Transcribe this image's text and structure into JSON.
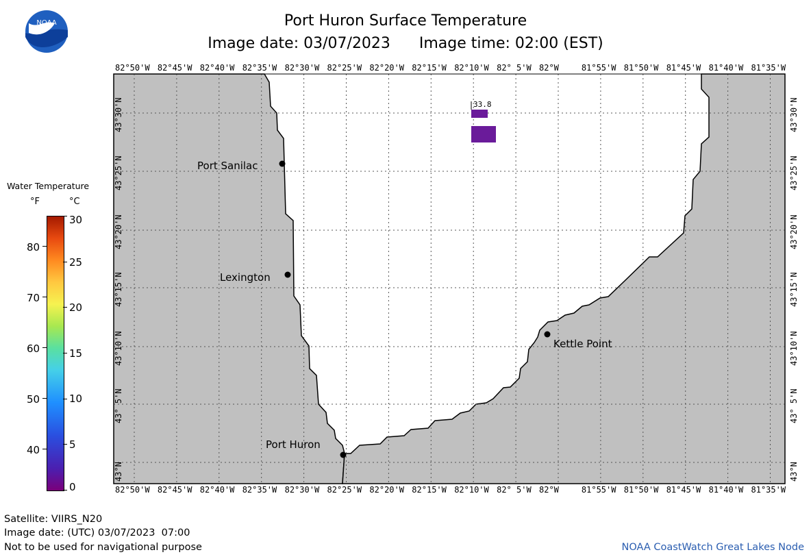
{
  "header": {
    "title": "Port Huron Surface Temperature",
    "subtitle": "Image date: 03/07/2023      Image time: 02:00 (EST)"
  },
  "logo": {
    "text": "NOAA"
  },
  "map": {
    "lon_ticks": [
      "82°50'W",
      "82°45'W",
      "82°40'W",
      "82°35'W",
      "82°30'W",
      "82°25'W",
      "82°20'W",
      "82°15'W",
      "82°10'W",
      "82° 5'W",
      "82°W",
      "81°55'W",
      "81°50'W",
      "81°45'W",
      "81°40'W",
      "81°35'W"
    ],
    "lat_ticks": [
      "43°30'N",
      "43°25'N",
      "43°20'N",
      "43°15'N",
      "43°10'N",
      "43° 5'N",
      "43°N"
    ],
    "places": [
      {
        "name": "Port Sanilac"
      },
      {
        "name": "Lexington"
      },
      {
        "name": "Kettle Point"
      },
      {
        "name": "Port Huron"
      }
    ],
    "data_label": "33.8",
    "land_color": "#c0c0c0",
    "data_color": "#6a1b9a"
  },
  "legend": {
    "title": "Water Temperature",
    "unit_f": "°F",
    "unit_c": "°C",
    "f_ticks": [
      "80",
      "70",
      "60",
      "50",
      "40"
    ],
    "c_ticks": [
      "30",
      "25",
      "20",
      "15",
      "10",
      "5",
      "0"
    ]
  },
  "footer": {
    "satellite": "Satellite: VIIRS_N20",
    "image_date_utc": "Image date: (UTC) 03/07/2023  07:00",
    "disclaimer": "Not to be used for navigational purpose",
    "credit": "NOAA CoastWatch Great Lakes Node"
  }
}
